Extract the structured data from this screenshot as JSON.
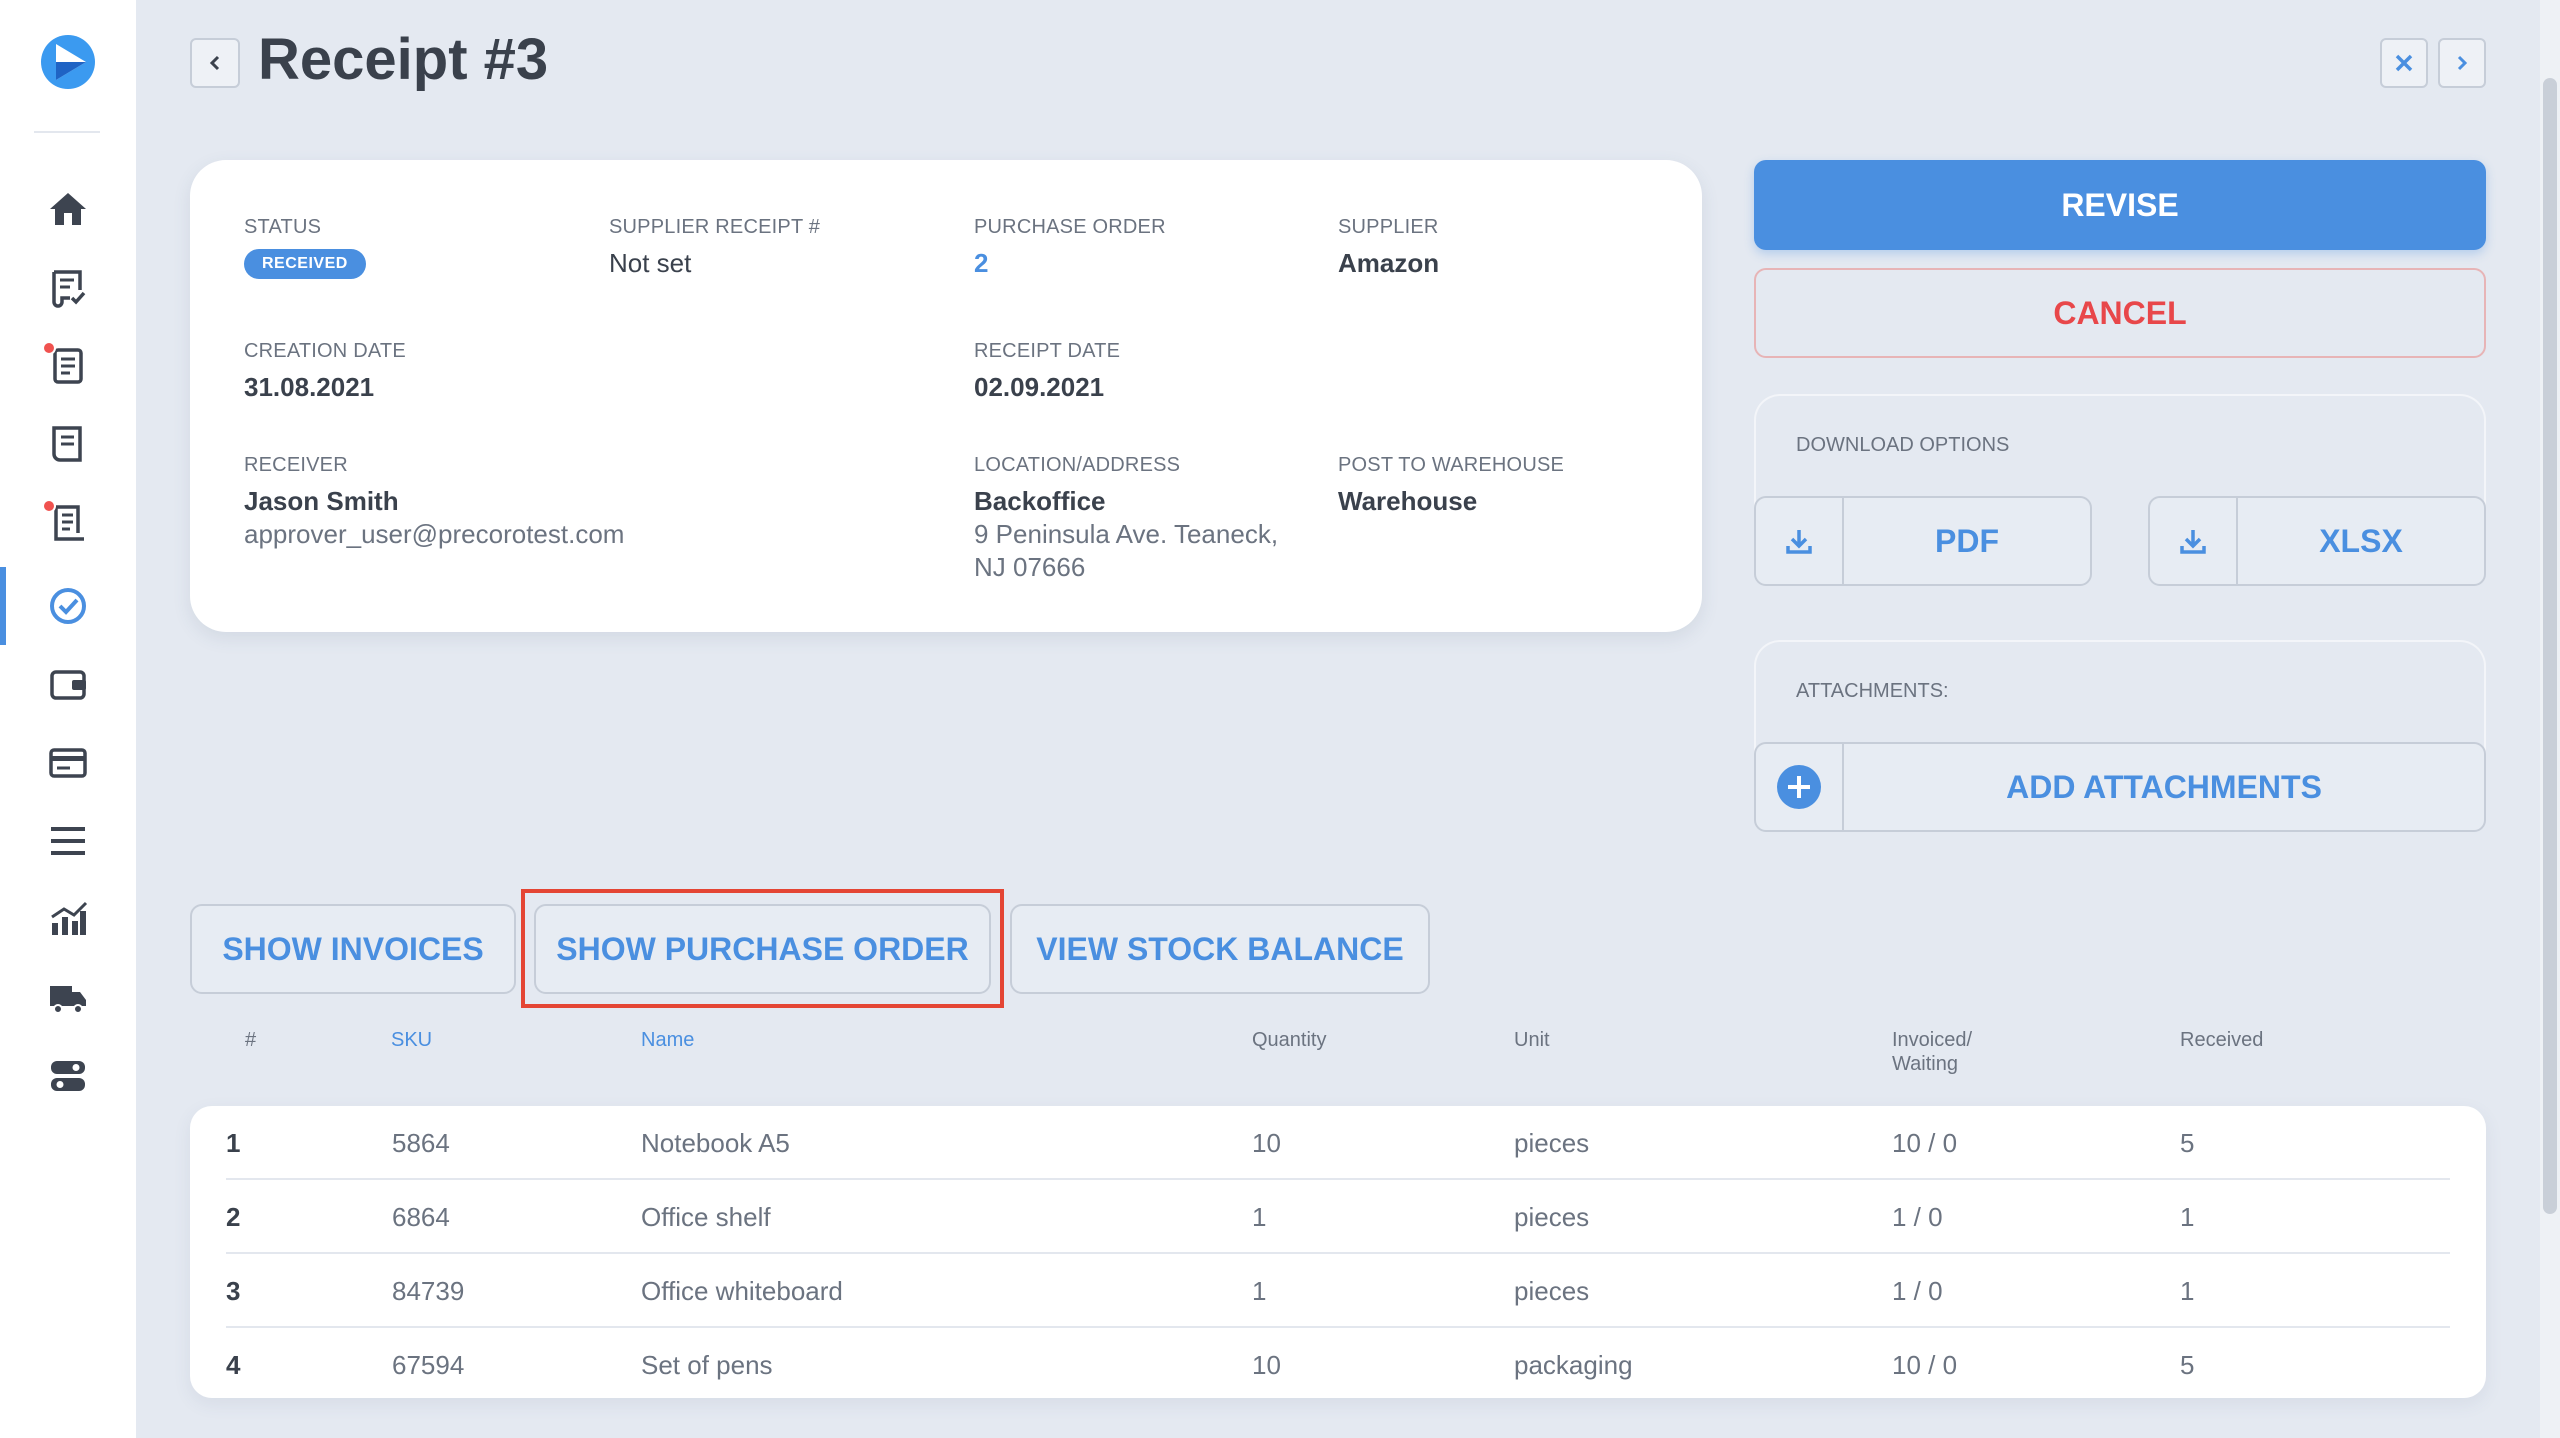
{
  "header": {
    "title": "Receipt #3"
  },
  "info": {
    "status_label": "STATUS",
    "status_badge": "RECEIVED",
    "supplier_receipt_label": "SUPPLIER RECEIPT #",
    "supplier_receipt_value": "Not set",
    "purchase_order_label": "PURCHASE ORDER",
    "purchase_order_value": "2",
    "supplier_label": "SUPPLIER",
    "supplier_value": "Amazon",
    "creation_date_label": "CREATION DATE",
    "creation_date_value": "31.08.2021",
    "receipt_date_label": "RECEIPT DATE",
    "receipt_date_value": "02.09.2021",
    "receiver_label": "RECEIVER",
    "receiver_name": "Jason Smith",
    "receiver_email": "approver_user@precorotest.com",
    "location_label": "LOCATION/ADDRESS",
    "location_name": "Backoffice",
    "location_line1": "9 Peninsula Ave. Teaneck,",
    "location_line2": "NJ 07666",
    "warehouse_label": "POST TO WAREHOUSE",
    "warehouse_value": "Warehouse"
  },
  "actions": {
    "revise": "REVISE",
    "cancel": "CANCEL",
    "download_options_label": "DOWNLOAD OPTIONS",
    "pdf": "PDF",
    "xlsx": "XLSX",
    "attachments_label": "ATTACHMENTS:",
    "add_attachments": "ADD ATTACHMENTS",
    "show_invoices": "SHOW INVOICES",
    "show_purchase_order": "SHOW PURCHASE ORDER",
    "view_stock_balance": "VIEW STOCK BALANCE"
  },
  "table": {
    "headers": {
      "num": "#",
      "sku": "SKU",
      "name": "Name",
      "quantity": "Quantity",
      "unit": "Unit",
      "invoiced_line1": "Invoiced/",
      "invoiced_line2": "Waiting",
      "received": "Received"
    },
    "rows": [
      {
        "num": "1",
        "sku": "5864",
        "name": "Notebook A5",
        "quantity": "10",
        "unit": "pieces",
        "invoiced": "10 / 0",
        "received": "5"
      },
      {
        "num": "2",
        "sku": "6864",
        "name": "Office shelf",
        "quantity": "1",
        "unit": "pieces",
        "invoiced": "1 / 0",
        "received": "1"
      },
      {
        "num": "3",
        "sku": "84739",
        "name": "Office whiteboard",
        "quantity": "1",
        "unit": "pieces",
        "invoiced": "1 / 0",
        "received": "1"
      },
      {
        "num": "4",
        "sku": "67594",
        "name": "Set of pens",
        "quantity": "10",
        "unit": "packaging",
        "invoiced": "10 / 0",
        "received": "5"
      }
    ]
  },
  "colors": {
    "accent": "#4a8fe0",
    "danger": "#e8474a",
    "background": "#e4e9f1",
    "highlight": "#e44534"
  },
  "sidebar": {
    "items": [
      "home-icon",
      "requests-icon",
      "purchase-orders-icon",
      "orders-icon",
      "invoices-icon",
      "receipts-icon",
      "wallet-icon",
      "cards-icon",
      "menu-icon",
      "analytics-icon",
      "delivery-icon",
      "settings-icon"
    ]
  }
}
